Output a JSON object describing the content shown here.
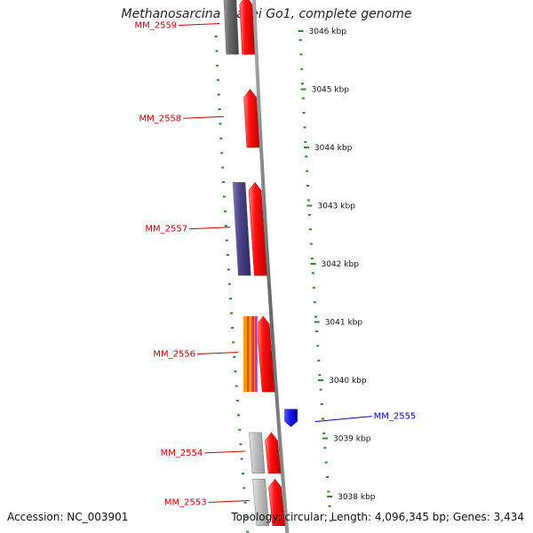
{
  "title": "Methanosarcina mazei Go1, complete genome",
  "footer": {
    "accession": "Accession: NC_003901",
    "summary": "Topology: circular; Length: 4,096,345 bp; Genes: 3,434"
  },
  "colors": {
    "backbone": "#777777",
    "minor_tick": "#2a8a2a",
    "gene_forward": "#ee1111",
    "label_forward": "#cc0000",
    "label_reverse": "#0000cc",
    "feature_gray": "#b8b8b8",
    "feature_dark": "#666666",
    "feature_purple": "#4a4488",
    "feature_orange": "#ff9900",
    "feature_pink": "#ee2277",
    "feature_blue": "#1a1aee"
  },
  "scale": {
    "ticks": [
      {
        "kbp": 3046,
        "label": "3046 kbp"
      },
      {
        "kbp": 3045,
        "label": "3045 kbp"
      },
      {
        "kbp": 3044,
        "label": "3044 kbp"
      },
      {
        "kbp": 3043,
        "label": "3043 kbp"
      },
      {
        "kbp": 3042,
        "label": "3042 kbp"
      },
      {
        "kbp": 3041,
        "label": "3041 kbp"
      },
      {
        "kbp": 3040,
        "label": "3040 kbp"
      },
      {
        "kbp": 3039,
        "label": "3039 kbp"
      },
      {
        "kbp": 3038,
        "label": "3038 kbp"
      }
    ]
  },
  "genes": [
    {
      "name": "MM_2559",
      "strand": "+",
      "start_kbp": 3045.6,
      "end_kbp": 3046.6,
      "features": [
        "feature_dark"
      ]
    },
    {
      "name": "MM_2558",
      "strand": "+",
      "start_kbp": 3044.0,
      "end_kbp": 3045.0,
      "features": []
    },
    {
      "name": "MM_2557",
      "strand": "+",
      "start_kbp": 3041.8,
      "end_kbp": 3043.4,
      "features": [
        "feature_purple"
      ]
    },
    {
      "name": "MM_2556",
      "strand": "+",
      "start_kbp": 3039.8,
      "end_kbp": 3041.1,
      "features": [
        "feature_orange",
        "feature_pink"
      ]
    },
    {
      "name": "MM_2555",
      "strand": "-",
      "start_kbp": 3039.2,
      "end_kbp": 3039.5,
      "features": []
    },
    {
      "name": "MM_2554",
      "strand": "+",
      "start_kbp": 3038.4,
      "end_kbp": 3039.1,
      "features": [
        "feature_gray"
      ]
    },
    {
      "name": "MM_2553",
      "strand": "+",
      "start_kbp": 3037.5,
      "end_kbp": 3038.3,
      "features": [
        "feature_gray"
      ]
    }
  ]
}
